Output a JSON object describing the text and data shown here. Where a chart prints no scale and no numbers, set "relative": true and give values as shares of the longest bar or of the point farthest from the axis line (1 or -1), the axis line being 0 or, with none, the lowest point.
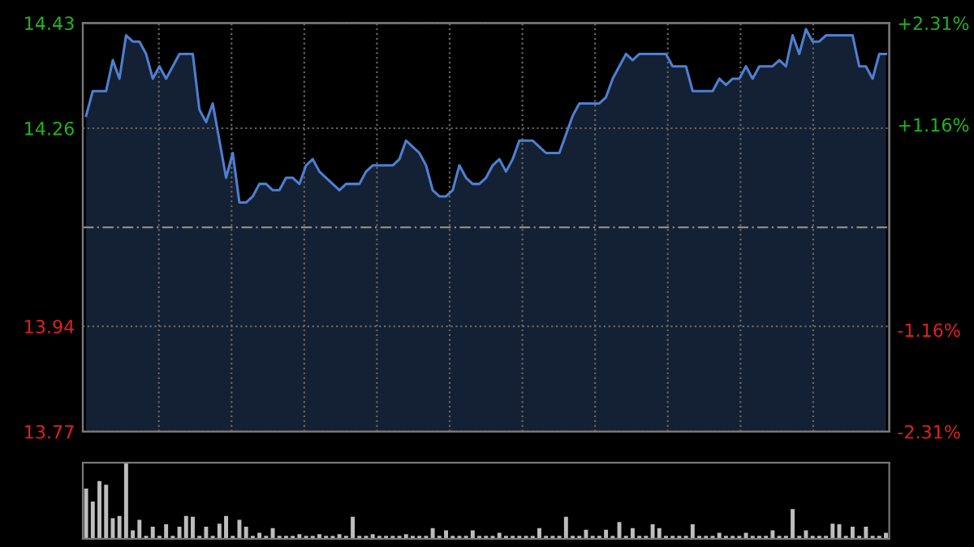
{
  "chart_data": [
    {
      "type": "area",
      "categories": [
        null,
        null,
        null,
        null,
        null,
        null,
        null,
        null,
        null,
        null,
        null,
        null,
        null,
        null,
        null,
        null,
        null,
        null,
        null,
        null,
        null,
        null,
        null,
        null,
        null,
        null,
        null,
        null,
        null,
        null,
        null,
        null,
        null,
        null,
        null,
        null,
        null,
        null,
        null,
        null,
        null,
        null,
        null,
        null,
        null,
        null,
        null,
        null,
        null,
        null,
        null,
        null,
        null,
        null,
        null,
        null,
        null,
        null,
        null,
        null,
        null,
        null,
        null,
        null,
        null,
        null,
        null,
        null,
        null,
        null,
        null,
        null,
        null,
        null,
        null,
        null,
        null,
        null,
        null,
        null,
        null,
        null,
        null,
        null,
        null,
        null,
        null,
        null,
        null,
        null,
        null,
        null,
        null,
        null,
        null,
        null,
        null,
        null,
        null,
        null,
        null,
        null,
        null,
        null,
        null,
        null,
        null,
        null,
        null,
        null,
        null,
        null,
        null,
        null,
        null,
        null,
        null,
        null,
        null,
        null,
        null
      ],
      "series": [
        {
          "color": "#4f7fd0",
          "values": [
            14.28,
            14.32,
            14.32,
            14.32,
            14.37,
            14.34,
            14.41,
            14.4,
            14.4,
            14.38,
            14.34,
            14.36,
            14.34,
            14.36,
            14.38,
            14.38,
            14.38,
            14.29,
            14.27,
            14.3,
            14.24,
            14.18,
            14.22,
            14.14,
            14.14,
            14.15,
            14.17,
            14.17,
            14.16,
            14.16,
            14.18,
            14.18,
            14.17,
            14.2,
            14.21,
            14.19,
            14.18,
            14.17,
            14.16,
            14.17,
            14.17,
            14.17,
            14.19,
            14.2,
            14.2,
            14.2,
            14.2,
            14.21,
            14.24,
            14.23,
            14.22,
            14.2,
            14.16,
            14.15,
            14.15,
            14.16,
            14.2,
            14.18,
            14.17,
            14.17,
            14.18,
            14.2,
            14.21,
            14.19,
            14.21,
            14.24,
            14.24,
            14.24,
            14.23,
            14.22,
            14.22,
            14.22,
            14.25,
            14.28,
            14.3,
            14.3,
            14.3,
            14.3,
            14.31,
            14.34,
            14.36,
            14.38,
            14.37,
            14.38,
            14.38,
            14.38,
            14.38,
            14.38,
            14.36,
            14.36,
            14.36,
            14.32,
            14.32,
            14.32,
            14.32,
            14.34,
            14.33,
            14.34,
            14.34,
            14.36,
            14.34,
            14.36,
            14.36,
            14.36,
            14.37,
            14.36,
            14.41,
            14.38,
            14.42,
            14.4,
            14.4,
            14.41,
            14.41,
            14.41,
            14.41,
            14.41,
            14.36,
            14.36,
            14.34,
            14.38,
            14.38
          ]
        }
      ],
      "ylim": [
        13.77,
        14.43
      ],
      "yticks": [
        13.77,
        13.94,
        14.26,
        14.43
      ],
      "y2lim": [
        -2.31,
        2.31
      ],
      "y2ticks": [
        {
          "value": -2.31,
          "label": "-2.31%"
        },
        {
          "value": -1.16,
          "label": "-1.16%"
        },
        {
          "value": 1.16,
          "label": "+1.16%"
        },
        {
          "value": 2.31,
          "label": "+2.31%"
        }
      ],
      "ref_lines": [
        {
          "axis": "y",
          "value": 14.1,
          "color": "#8a8a8a",
          "line_style": "dashed"
        }
      ],
      "grid": true
    },
    {
      "type": "bar",
      "relative": true,
      "categories": [
        null,
        null,
        null,
        null,
        null,
        null,
        null,
        null,
        null,
        null,
        null,
        null,
        null,
        null,
        null,
        null,
        null,
        null,
        null,
        null,
        null,
        null,
        null,
        null,
        null,
        null,
        null,
        null,
        null,
        null,
        null,
        null,
        null,
        null,
        null,
        null,
        null,
        null,
        null,
        null,
        null,
        null,
        null,
        null,
        null,
        null,
        null,
        null,
        null,
        null,
        null,
        null,
        null,
        null,
        null,
        null,
        null,
        null,
        null,
        null,
        null,
        null,
        null,
        null,
        null,
        null,
        null,
        null,
        null,
        null,
        null,
        null,
        null,
        null,
        null,
        null,
        null,
        null,
        null,
        null,
        null,
        null,
        null,
        null,
        null,
        null,
        null,
        null,
        null,
        null,
        null,
        null,
        null,
        null,
        null,
        null,
        null,
        null,
        null,
        null,
        null,
        null,
        null,
        null,
        null,
        null,
        null,
        null,
        null,
        null,
        null,
        null,
        null,
        null,
        null,
        null,
        null,
        null,
        null,
        null,
        null
      ],
      "series": [
        {
          "color": "#bdbdbd",
          "values": [
            0.66,
            0.49,
            0.76,
            0.71,
            0.27,
            0.3,
            1.0,
            0.11,
            0.25,
            0.04,
            0.16,
            0.04,
            0.19,
            0.04,
            0.16,
            0.3,
            0.29,
            0.04,
            0.16,
            0.04,
            0.2,
            0.3,
            0.04,
            0.25,
            0.16,
            0.04,
            0.08,
            0.04,
            0.14,
            0.04,
            0.04,
            0.04,
            0.06,
            0.04,
            0.04,
            0.06,
            0.04,
            0.04,
            0.06,
            0.04,
            0.29,
            0.04,
            0.04,
            0.06,
            0.04,
            0.04,
            0.04,
            0.04,
            0.06,
            0.04,
            0.04,
            0.04,
            0.14,
            0.04,
            0.11,
            0.04,
            0.04,
            0.04,
            0.11,
            0.04,
            0.04,
            0.04,
            0.08,
            0.04,
            0.04,
            0.04,
            0.04,
            0.04,
            0.14,
            0.04,
            0.04,
            0.04,
            0.29,
            0.04,
            0.04,
            0.12,
            0.04,
            0.04,
            0.12,
            0.04,
            0.22,
            0.04,
            0.14,
            0.04,
            0.04,
            0.19,
            0.14,
            0.04,
            0.04,
            0.04,
            0.04,
            0.19,
            0.04,
            0.04,
            0.04,
            0.08,
            0.04,
            0.04,
            0.04,
            0.08,
            0.04,
            0.04,
            0.04,
            0.11,
            0.04,
            0.04,
            0.39,
            0.04,
            0.11,
            0.04,
            0.04,
            0.04,
            0.2,
            0.19,
            0.04,
            0.16,
            0.04,
            0.16,
            0.04,
            0.04,
            0.08
          ]
        }
      ]
    }
  ]
}
